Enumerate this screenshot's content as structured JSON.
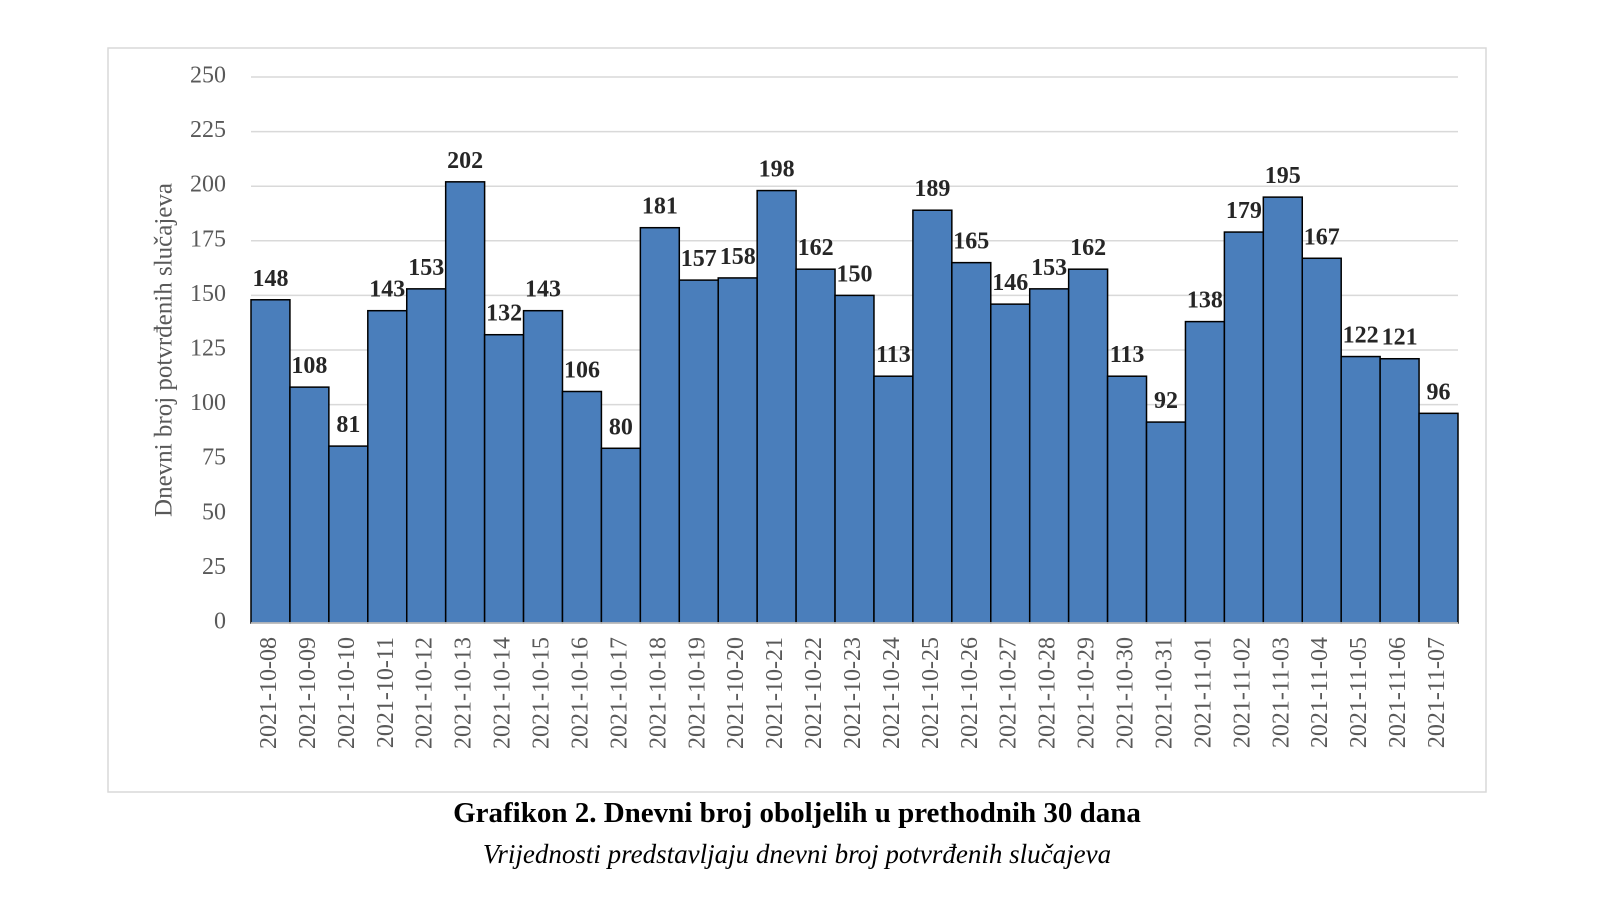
{
  "chart_data": {
    "type": "bar",
    "title": "Grafikon 2. Dnevni broj oboljelih u prethodnih 30 dana",
    "subtitle": "Vrijednosti predstavljaju dnevni broj potvrđenih slučajeva",
    "y_label": "Dnevni broj potvrđenih slučajeva",
    "categories": [
      "2021-10-08",
      "2021-10-09",
      "2021-10-10",
      "2021-10-11",
      "2021-10-12",
      "2021-10-13",
      "2021-10-14",
      "2021-10-15",
      "2021-10-16",
      "2021-10-17",
      "2021-10-18",
      "2021-10-19",
      "2021-10-20",
      "2021-10-21",
      "2021-10-22",
      "2021-10-23",
      "2021-10-24",
      "2021-10-25",
      "2021-10-26",
      "2021-10-27",
      "2021-10-28",
      "2021-10-29",
      "2021-10-30",
      "2021-10-31",
      "2021-11-01",
      "2021-11-02",
      "2021-11-03",
      "2021-11-04",
      "2021-11-05",
      "2021-11-06",
      "2021-11-07"
    ],
    "values": [
      148,
      108,
      81,
      143,
      153,
      202,
      132,
      143,
      106,
      80,
      181,
      157,
      158,
      198,
      162,
      150,
      113,
      189,
      165,
      146,
      153,
      162,
      113,
      92,
      138,
      179,
      195,
      167,
      122,
      121,
      96
    ],
    "color": "#4a7ebb",
    "ylim": [
      0,
      250
    ],
    "yticks": [
      0,
      25,
      50,
      75,
      100,
      125,
      150,
      175,
      200,
      225,
      250
    ],
    "grid": true
  }
}
